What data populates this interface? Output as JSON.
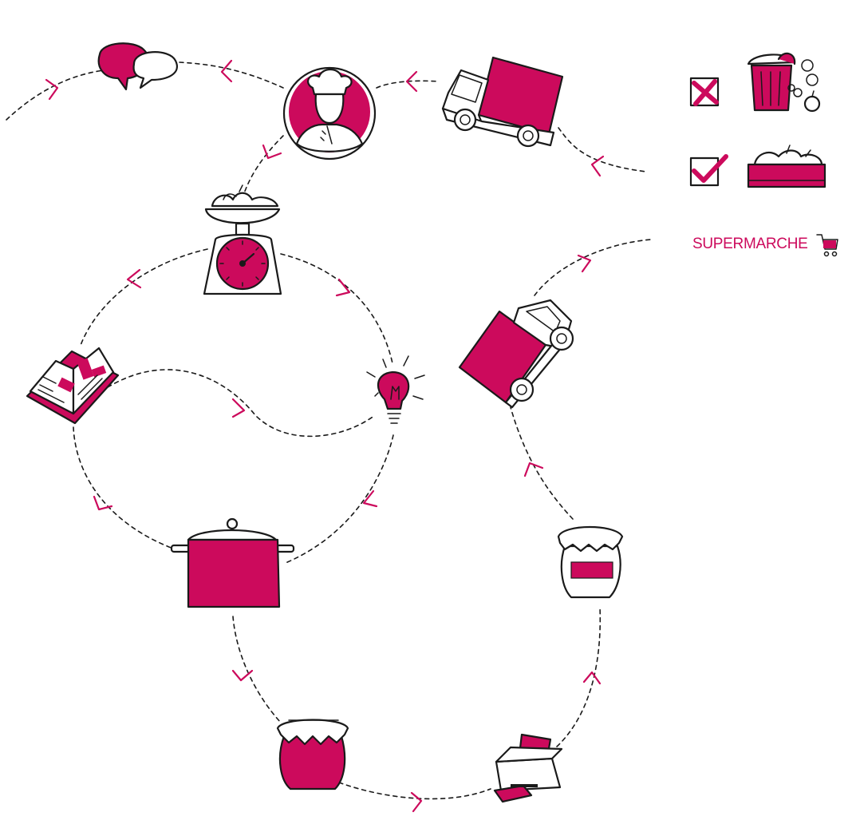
{
  "legend": {
    "supermarket_label": "SUPERMARCHE",
    "items": [
      {
        "mark": "cross",
        "icon": "trash-can-with-fruit-icon"
      },
      {
        "mark": "check",
        "icon": "fruit-crate-icon"
      },
      {
        "mark": "none",
        "icon": "shopping-cart-icon"
      }
    ]
  },
  "colors": {
    "accent": "#cc0a5c",
    "ink": "#1a1a1a"
  },
  "cycle_icons": [
    "speech-bubbles-icon",
    "chef-icon",
    "delivery-truck-icon",
    "kitchen-scale-icon",
    "recipe-book-icon",
    "lightbulb-icon",
    "cooking-pot-icon",
    "filled-jam-jar-icon",
    "printer-icon",
    "labeled-jar-icon",
    "tilted-truck-icon"
  ]
}
